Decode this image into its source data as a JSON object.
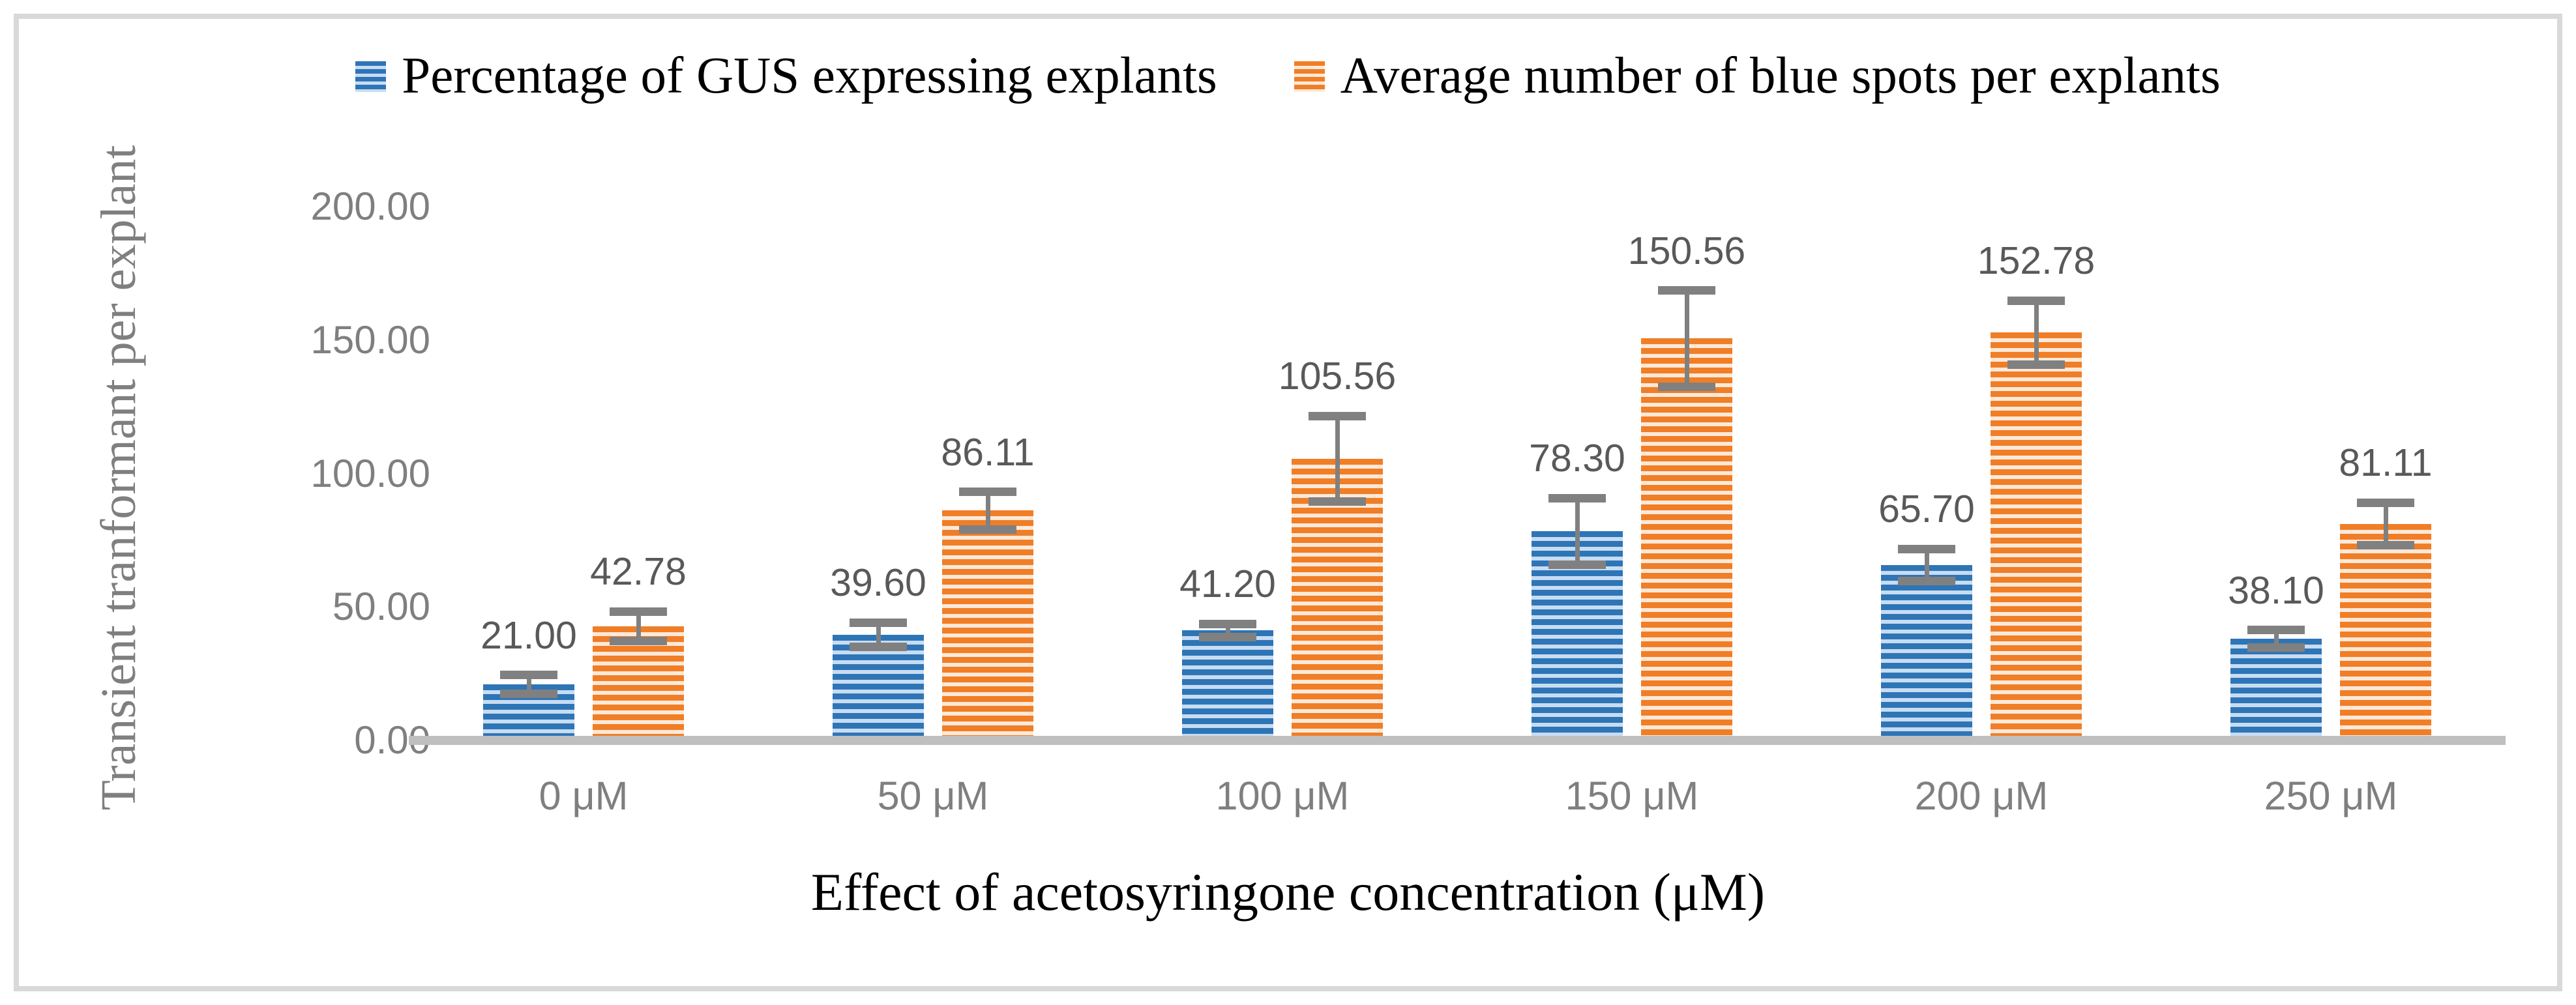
{
  "figure": {
    "legend": [
      {
        "key": "gus",
        "label": "Percentage of GUS expressing explants"
      },
      {
        "key": "spots",
        "label": "Average number of blue spots per explants"
      }
    ],
    "y_axis_title": "Transient tranformant per explant",
    "x_axis_title": "Effect of acetosyringone concentration (μM)"
  },
  "chart_data": {
    "type": "bar",
    "title": "",
    "xlabel": "Effect of acetosyringone concentration (μM)",
    "ylabel": "Transient tranformant per explant",
    "categories": [
      "0 μM",
      "50 μM",
      "100 μM",
      "150 μM",
      "200 μM",
      "250 μM"
    ],
    "series": [
      {
        "name": "Percentage of GUS expressing explants",
        "key": "gus",
        "color": "#2E75B6",
        "stripe_light": "#C8DCF2",
        "values": [
          21.0,
          39.6,
          41.2,
          78.3,
          65.7,
          38.1
        ],
        "labels": [
          "21.00",
          "39.60",
          "41.20",
          "78.30",
          "65.70",
          "38.10"
        ],
        "errors": [
          3.5,
          4.5,
          2.5,
          12.5,
          6.0,
          3.2
        ]
      },
      {
        "name": "Average number of blue spots per explants",
        "key": "spots",
        "color": "#F07E27",
        "stripe_light": "#FDE9D9",
        "values": [
          42.78,
          86.11,
          105.56,
          150.56,
          152.78,
          81.11
        ],
        "labels": [
          "42.78",
          "86.11",
          "105.56",
          "150.56",
          "152.78",
          "81.11"
        ],
        "errors": [
          5.5,
          7.0,
          16.0,
          18.0,
          12.0,
          8.0
        ]
      }
    ],
    "ylim": [
      0,
      200
    ],
    "yticks": [
      {
        "value": 0,
        "label": "0.00"
      },
      {
        "value": 50,
        "label": "50.00"
      },
      {
        "value": 100,
        "label": "100.00"
      },
      {
        "value": 150,
        "label": "150.00"
      },
      {
        "value": 200,
        "label": "200.00"
      }
    ],
    "legend_position": "top",
    "grid": false,
    "error_bars": true,
    "colors": {
      "axis_band": "#BFBFBF",
      "tick_text": "#7F7F7F",
      "value_label_text": "#595959",
      "error_bar": "#808080",
      "border": "#D9D9D9",
      "legend_text": "#000000"
    }
  }
}
